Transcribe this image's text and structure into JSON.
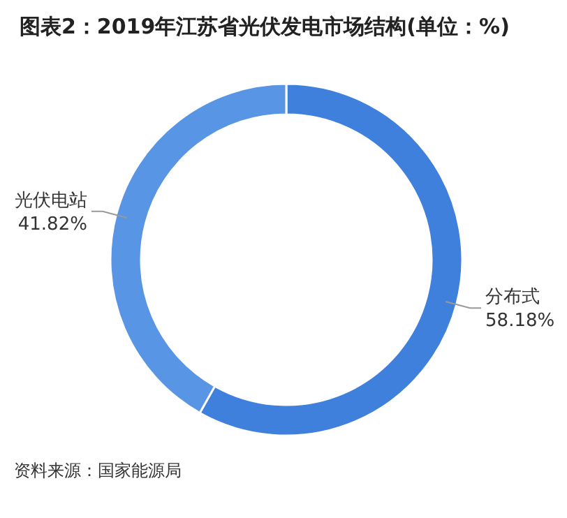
{
  "chart_data": {
    "type": "donut",
    "title": "图表2：2019年江苏省光伏发电市场结构(单位：%)",
    "categories": [
      "分布式",
      "光伏电站"
    ],
    "values": [
      58.18,
      41.82
    ],
    "colors": [
      "#3f80dd",
      "#5895e4"
    ],
    "value_labels": [
      "58.18%",
      "41.82%"
    ],
    "annotations": [
      "资料来源：国家能源局"
    ]
  }
}
